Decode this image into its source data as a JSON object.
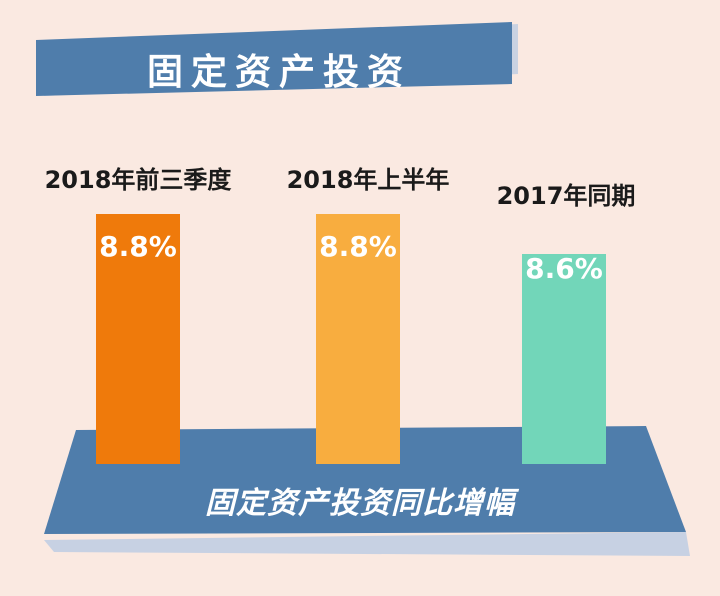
{
  "chart_data": {
    "type": "bar",
    "title": "固定资产投资",
    "xlabel": "固定资产投资同比增幅",
    "ylabel": "",
    "categories": [
      "2018年前三季度",
      "2018年上半年",
      "2017年同期"
    ],
    "values": [
      8.8,
      8.8,
      8.6
    ],
    "value_labels": [
      "8.8%",
      "8.8%",
      "8.6%"
    ],
    "colors": [
      "#ef7a0b",
      "#f8ad3f",
      "#72d6b9"
    ],
    "grid": false,
    "legend": "none"
  },
  "colors": {
    "background": "#fae9e1",
    "banner": "#4f7dab",
    "banner_shadow": "#c9d2e2",
    "base": "#4f7dab",
    "base_shadow": "#c7d1e3"
  }
}
